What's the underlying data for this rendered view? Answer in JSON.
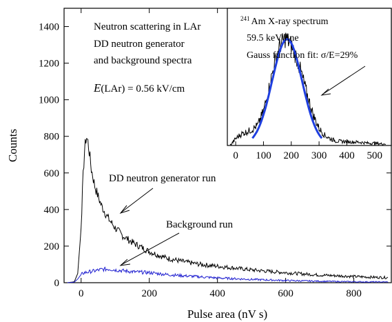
{
  "chart_data": [
    {
      "type": "line",
      "xlabel": "Pulse area (nV s)",
      "ylabel": "Counts",
      "xlim": [
        -50,
        910
      ],
      "ylim": [
        0,
        1500
      ],
      "xticks": [
        0,
        200,
        400,
        600,
        800
      ],
      "yticks": [
        0,
        200,
        400,
        600,
        800,
        1000,
        1200,
        1400
      ],
      "grid": false,
      "annotations": {
        "title_lines": [
          "Neutron scattering in LAr",
          "DD neutron generator",
          "and background spectra"
        ],
        "field_symbol": "E",
        "field_text": "(LAr) = 0.56 kV/cm",
        "dd_label": "DD neutron generator run",
        "bg_label": "Background run"
      },
      "series": [
        {
          "label_key": "dd",
          "color": "#000000",
          "x": [
            -40,
            -20,
            -10,
            0,
            5,
            10,
            15,
            20,
            25,
            30,
            40,
            50,
            60,
            80,
            100,
            120,
            150,
            180,
            200,
            250,
            300,
            350,
            400,
            450,
            500,
            550,
            600,
            650,
            700,
            750,
            800,
            850,
            900
          ],
          "y": [
            0,
            5,
            50,
            300,
            550,
            720,
            800,
            770,
            700,
            620,
            530,
            470,
            420,
            350,
            300,
            260,
            220,
            190,
            170,
            135,
            115,
            100,
            90,
            80,
            70,
            62,
            55,
            48,
            42,
            38,
            34,
            30,
            28
          ]
        },
        {
          "label_key": "bg",
          "color": "#1f1fd0",
          "x": [
            -40,
            -20,
            -10,
            0,
            10,
            20,
            40,
            60,
            80,
            100,
            150,
            200,
            250,
            300,
            350,
            400,
            500,
            600,
            700,
            800,
            900
          ],
          "y": [
            0,
            3,
            20,
            45,
            55,
            58,
            65,
            72,
            75,
            70,
            60,
            55,
            45,
            38,
            32,
            26,
            18,
            12,
            8,
            5,
            4
          ]
        }
      ]
    },
    {
      "type": "line",
      "xlim": [
        -30,
        560
      ],
      "ylim": [
        0,
        1200
      ],
      "xticks": [
        0,
        100,
        200,
        300,
        400,
        500
      ],
      "annotations": {
        "isotope_mass": "241",
        "line1_rest": "Am X-ray spectrum",
        "line2": "59.5 keV line",
        "line3": "Gauss function fit: σ/E=29%"
      },
      "series": [
        {
          "label_key": "am241-data",
          "color": "#000000",
          "x": [
            -20,
            0,
            20,
            40,
            60,
            80,
            100,
            120,
            140,
            160,
            180,
            200,
            220,
            240,
            260,
            280,
            300,
            320,
            340,
            360,
            380,
            400,
            420,
            440,
            460,
            480,
            500,
            520,
            540
          ],
          "y": [
            0,
            60,
            100,
            120,
            140,
            180,
            300,
            500,
            720,
            880,
            940,
            880,
            760,
            600,
            420,
            260,
            150,
            90,
            60,
            40,
            35,
            35,
            30,
            30,
            25,
            20,
            20,
            15,
            15
          ]
        },
        {
          "label_key": "gauss-fit",
          "color": "#1f3fe0",
          "mean": 185,
          "sigma": 54,
          "amplitude": 930,
          "x_range": [
            60,
            310
          ]
        }
      ]
    }
  ]
}
